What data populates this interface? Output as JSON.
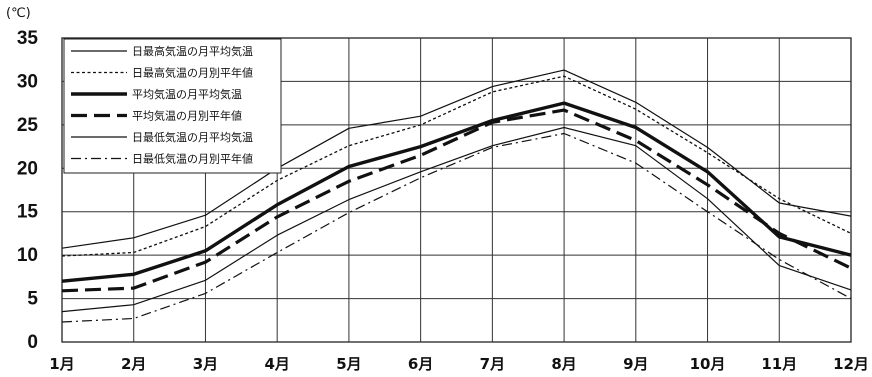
{
  "chart_data": {
    "type": "line",
    "unit_label": "(℃)",
    "categories": [
      "1月",
      "2月",
      "3月",
      "4月",
      "5月",
      "6月",
      "7月",
      "8月",
      "9月",
      "10月",
      "11月",
      "12月"
    ],
    "ylim": [
      0,
      35
    ],
    "yticks": [
      "0",
      "5",
      "10",
      "15",
      "20",
      "25",
      "30",
      "35"
    ],
    "grid": true,
    "legend_position": "top-left",
    "series": [
      {
        "name": "日最高気温の月平均気温",
        "style": "thin-solid",
        "values": [
          10.8,
          12.0,
          14.6,
          20.0,
          24.6,
          26.0,
          29.4,
          31.3,
          27.6,
          22.4,
          16.0,
          14.5
        ]
      },
      {
        "name": "日最高気温の月別平年値",
        "style": "dotted",
        "values": [
          9.9,
          10.3,
          13.3,
          18.6,
          22.6,
          25.0,
          28.8,
          30.6,
          26.8,
          21.8,
          16.5,
          12.5
        ]
      },
      {
        "name": "平均気温の月平均気温",
        "style": "thick-solid",
        "values": [
          7.0,
          7.8,
          10.5,
          15.8,
          20.2,
          22.5,
          25.5,
          27.5,
          24.7,
          19.6,
          12.1,
          10.0
        ]
      },
      {
        "name": "平均気温の月別平年値",
        "style": "thick-dash",
        "values": [
          5.9,
          6.2,
          9.2,
          14.4,
          18.5,
          21.5,
          25.3,
          26.7,
          23.2,
          18.1,
          12.5,
          8.5
        ]
      },
      {
        "name": "日最低気温の月平均気温",
        "style": "thin-solid",
        "values": [
          3.5,
          4.3,
          7.1,
          12.3,
          16.4,
          19.6,
          22.6,
          24.7,
          22.6,
          16.5,
          8.8,
          6.0
        ]
      },
      {
        "name": "日最低気温の月別平年値",
        "style": "dash-dot",
        "values": [
          2.3,
          2.7,
          5.6,
          10.3,
          14.9,
          18.9,
          22.4,
          24.0,
          20.6,
          15.0,
          9.5,
          5.0
        ]
      }
    ]
  }
}
